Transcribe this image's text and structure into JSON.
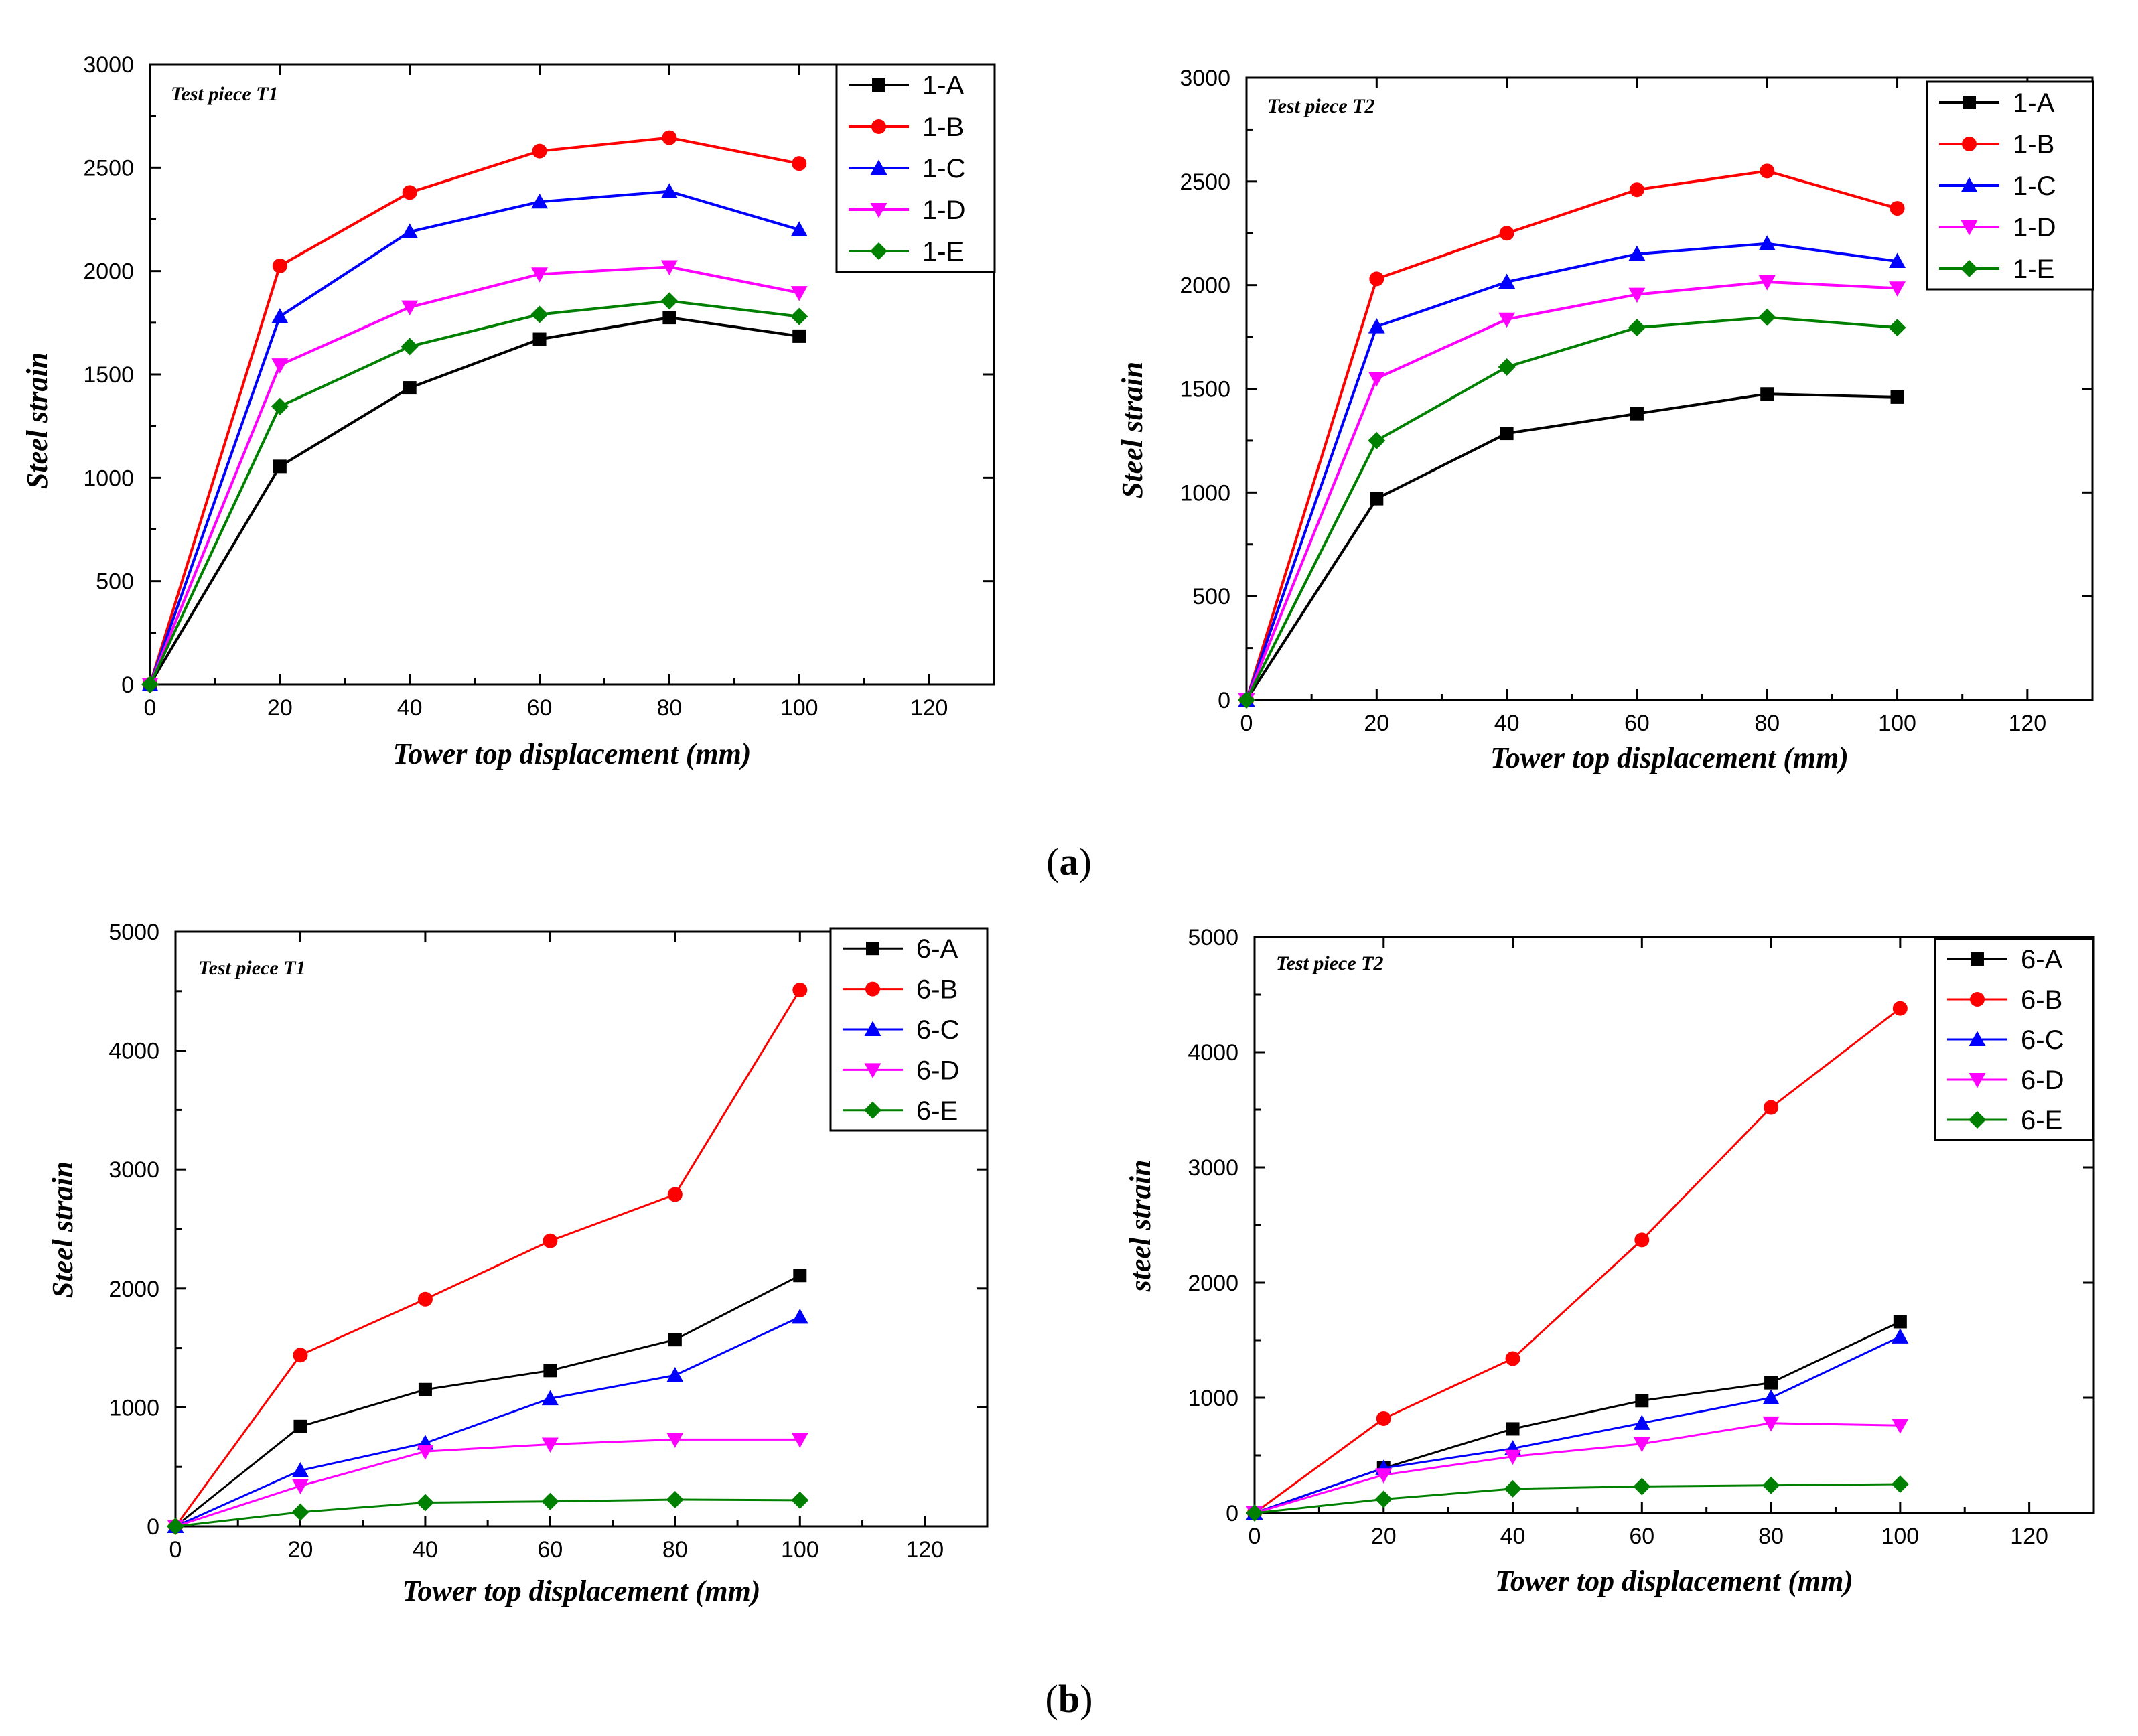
{
  "figure": {
    "sublabels": [
      {
        "open": "(",
        "letter": "a",
        "close": ")"
      },
      {
        "open": "(",
        "letter": "b",
        "close": ")"
      }
    ]
  },
  "chart_data": [
    {
      "type": "line",
      "title": "Test piece T1",
      "xlabel": "Tower top displacement (mm)",
      "ylabel": "Steel strain",
      "xlim": [
        0,
        130
      ],
      "ylim": [
        0,
        3000
      ],
      "xticks": [
        0,
        20,
        40,
        60,
        80,
        100,
        120
      ],
      "yticks": [
        0,
        500,
        1000,
        1500,
        2000,
        2500,
        3000
      ],
      "legend_position": "top-right",
      "x": [
        0,
        20,
        40,
        60,
        80,
        100
      ],
      "series": [
        {
          "name": "1-A",
          "color": "#000000",
          "marker": "square",
          "values": [
            0,
            1055,
            1435,
            1670,
            1775,
            1685
          ]
        },
        {
          "name": "1-B",
          "color": "#ff0000",
          "marker": "circle",
          "values": [
            0,
            2025,
            2380,
            2580,
            2645,
            2520
          ]
        },
        {
          "name": "1-C",
          "color": "#0000ff",
          "marker": "triangle-up",
          "values": [
            0,
            1780,
            2190,
            2335,
            2385,
            2200
          ]
        },
        {
          "name": "1-D",
          "color": "#ff00ff",
          "marker": "triangle-down",
          "values": [
            0,
            1545,
            1825,
            1985,
            2020,
            1895
          ]
        },
        {
          "name": "1-E",
          "color": "#008000",
          "marker": "diamond",
          "values": [
            0,
            1345,
            1635,
            1790,
            1855,
            1780
          ]
        }
      ]
    },
    {
      "type": "line",
      "title": "Test piece T2",
      "xlabel": "Tower top displacement (mm)",
      "ylabel": "Steel strain",
      "xlim": [
        0,
        130
      ],
      "ylim": [
        0,
        3000
      ],
      "xticks": [
        0,
        20,
        40,
        60,
        80,
        100,
        120
      ],
      "yticks": [
        0,
        500,
        1000,
        1500,
        2000,
        2500,
        3000
      ],
      "legend_position": "top-right",
      "x": [
        0,
        20,
        40,
        60,
        80,
        100
      ],
      "series": [
        {
          "name": "1-A",
          "color": "#000000",
          "marker": "square",
          "values": [
            0,
            970,
            1285,
            1380,
            1475,
            1460
          ]
        },
        {
          "name": "1-B",
          "color": "#ff0000",
          "marker": "circle",
          "values": [
            0,
            2030,
            2250,
            2460,
            2550,
            2370
          ]
        },
        {
          "name": "1-C",
          "color": "#0000ff",
          "marker": "triangle-up",
          "values": [
            0,
            1800,
            2015,
            2150,
            2200,
            2115
          ]
        },
        {
          "name": "1-D",
          "color": "#ff00ff",
          "marker": "triangle-down",
          "values": [
            0,
            1550,
            1835,
            1955,
            2015,
            1985
          ]
        },
        {
          "name": "1-E",
          "color": "#008000",
          "marker": "diamond",
          "values": [
            0,
            1250,
            1605,
            1795,
            1845,
            1795
          ]
        }
      ]
    },
    {
      "type": "line",
      "title": "Test piece T1",
      "xlabel": "Tower top displacement (mm)",
      "ylabel": "Steel strain",
      "xlim": [
        0,
        130
      ],
      "ylim": [
        0,
        5000
      ],
      "xticks": [
        0,
        20,
        40,
        60,
        80,
        100,
        120
      ],
      "yticks": [
        0,
        1000,
        2000,
        3000,
        4000,
        5000
      ],
      "legend_position": "top-right",
      "x": [
        0,
        20,
        40,
        60,
        80,
        100
      ],
      "series": [
        {
          "name": "6-A",
          "color": "#000000",
          "marker": "square",
          "values": [
            0,
            840,
            1150,
            1310,
            1570,
            2110
          ]
        },
        {
          "name": "6-B",
          "color": "#ff0000",
          "marker": "circle",
          "values": [
            0,
            1440,
            1910,
            2400,
            2790,
            4510
          ]
        },
        {
          "name": "6-C",
          "color": "#0000ff",
          "marker": "triangle-up",
          "values": [
            0,
            470,
            700,
            1075,
            1270,
            1760
          ]
        },
        {
          "name": "6-D",
          "color": "#ff00ff",
          "marker": "triangle-down",
          "values": [
            0,
            340,
            630,
            690,
            730,
            730
          ]
        },
        {
          "name": "6-E",
          "color": "#008000",
          "marker": "diamond",
          "values": [
            0,
            120,
            200,
            210,
            225,
            220
          ]
        }
      ]
    },
    {
      "type": "line",
      "title": "Test piece T2",
      "xlabel": "Tower top displacement (mm)",
      "ylabel": "steel strain",
      "xlim": [
        0,
        130
      ],
      "ylim": [
        0,
        5000
      ],
      "xticks": [
        0,
        20,
        40,
        60,
        80,
        100,
        120
      ],
      "yticks": [
        0,
        1000,
        2000,
        3000,
        4000,
        5000
      ],
      "legend_position": "top-right",
      "x": [
        0,
        20,
        40,
        60,
        80,
        100
      ],
      "series": [
        {
          "name": "6-A",
          "color": "#000000",
          "marker": "square",
          "values": [
            0,
            390,
            730,
            975,
            1130,
            1660
          ]
        },
        {
          "name": "6-B",
          "color": "#ff0000",
          "marker": "circle",
          "values": [
            0,
            820,
            1340,
            2370,
            3520,
            4380
          ]
        },
        {
          "name": "6-C",
          "color": "#0000ff",
          "marker": "triangle-up",
          "values": [
            0,
            390,
            560,
            780,
            1000,
            1530
          ]
        },
        {
          "name": "6-D",
          "color": "#ff00ff",
          "marker": "triangle-down",
          "values": [
            0,
            330,
            490,
            600,
            780,
            760
          ]
        },
        {
          "name": "6-E",
          "color": "#008000",
          "marker": "diamond",
          "values": [
            0,
            120,
            210,
            230,
            240,
            250
          ]
        }
      ]
    }
  ]
}
